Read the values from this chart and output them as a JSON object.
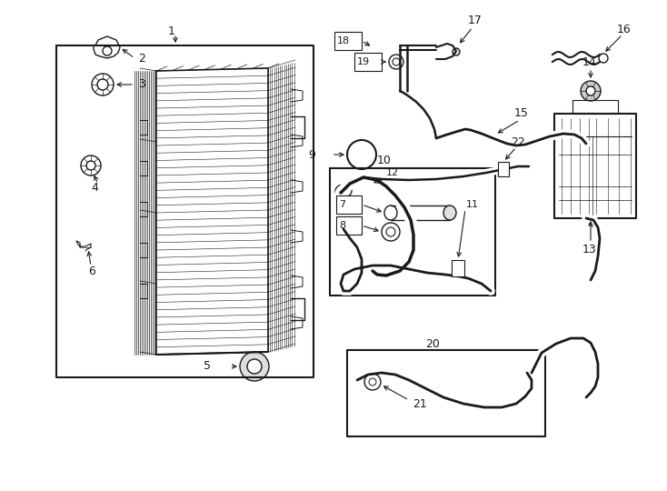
{
  "background_color": "#ffffff",
  "line_color": "#1a1a1a",
  "fig_w": 7.34,
  "fig_h": 5.4,
  "dpi": 100,
  "font_size": 9,
  "font_size_sm": 8
}
